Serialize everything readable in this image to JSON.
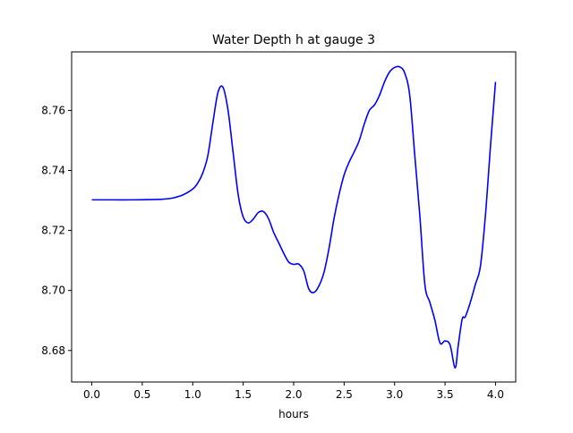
{
  "chart_data": {
    "type": "line",
    "title": "Water Depth h at gauge 3",
    "xlabel": "hours",
    "ylabel": "",
    "xlim": [
      -0.2,
      4.2
    ],
    "ylim": [
      8.6695,
      8.7795
    ],
    "xticks": [
      0.0,
      0.5,
      1.0,
      1.5,
      2.0,
      2.5,
      3.0,
      3.5,
      4.0
    ],
    "xtick_labels": [
      "0.0",
      "0.5",
      "1.0",
      "1.5",
      "2.0",
      "2.5",
      "3.0",
      "3.5",
      "4.0"
    ],
    "yticks": [
      8.68,
      8.7,
      8.72,
      8.74,
      8.76
    ],
    "ytick_labels": [
      "8.68",
      "8.70",
      "8.72",
      "8.74",
      "8.76"
    ],
    "grid": false,
    "series": [
      {
        "color": "#0000ff",
        "x": [
          0.0,
          0.2,
          0.4,
          0.6,
          0.7,
          0.8,
          0.9,
          1.0,
          1.05,
          1.1,
          1.15,
          1.2,
          1.25,
          1.3,
          1.35,
          1.4,
          1.45,
          1.5,
          1.55,
          1.6,
          1.65,
          1.7,
          1.75,
          1.8,
          1.85,
          1.9,
          1.95,
          2.0,
          2.05,
          2.1,
          2.15,
          2.2,
          2.25,
          2.3,
          2.35,
          2.4,
          2.45,
          2.5,
          2.55,
          2.6,
          2.65,
          2.7,
          2.75,
          2.8,
          2.85,
          2.9,
          2.95,
          3.0,
          3.05,
          3.1,
          3.15,
          3.2,
          3.25,
          3.3,
          3.35,
          3.4,
          3.45,
          3.5,
          3.55,
          3.6,
          3.63,
          3.67,
          3.7,
          3.75,
          3.8,
          3.85,
          3.9,
          3.95,
          4.0
        ],
        "y": [
          8.7302,
          8.7302,
          8.7302,
          8.7303,
          8.7304,
          8.7308,
          8.7318,
          8.7338,
          8.7358,
          8.7392,
          8.745,
          8.756,
          8.766,
          8.7677,
          8.76,
          8.746,
          8.732,
          8.7245,
          8.7225,
          8.7238,
          8.726,
          8.7263,
          8.724,
          8.7195,
          8.716,
          8.7125,
          8.7095,
          8.7087,
          8.7088,
          8.7065,
          8.7005,
          8.6993,
          8.7015,
          8.706,
          8.714,
          8.724,
          8.732,
          8.7385,
          8.7428,
          8.7462,
          8.75,
          8.7555,
          8.76,
          8.7618,
          8.765,
          8.7695,
          8.7728,
          8.7743,
          8.7745,
          8.7725,
          8.765,
          8.745,
          8.725,
          8.702,
          8.696,
          8.69,
          8.6825,
          8.6832,
          8.6818,
          8.6742,
          8.6815,
          8.6905,
          8.6912,
          8.696,
          8.702,
          8.708,
          8.725,
          8.748,
          8.7695
        ]
      }
    ]
  }
}
